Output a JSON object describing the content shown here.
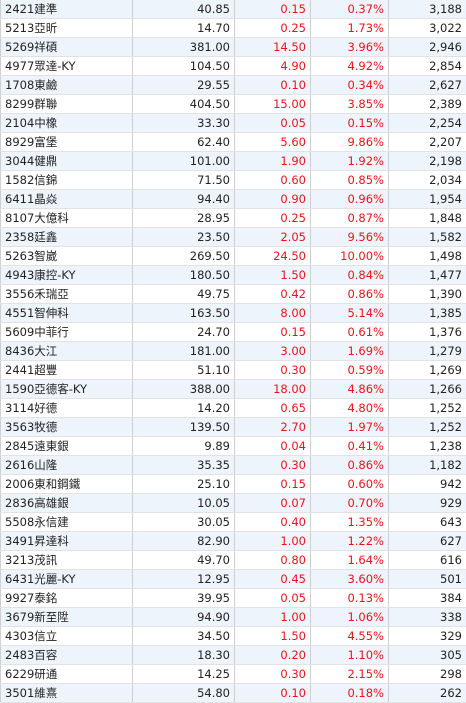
{
  "rows": [
    {
      "name": "2421建準",
      "price": "40.85",
      "change": "0.15",
      "pct": "0.37%",
      "volume": "3,188"
    },
    {
      "name": "5213亞昕",
      "price": "14.70",
      "change": "0.25",
      "pct": "1.73%",
      "volume": "3,022"
    },
    {
      "name": "5269祥碩",
      "price": "381.00",
      "change": "14.50",
      "pct": "3.96%",
      "volume": "2,946"
    },
    {
      "name": "4977眾達-KY",
      "price": "104.50",
      "change": "4.90",
      "pct": "4.92%",
      "volume": "2,854"
    },
    {
      "name": "1708東鹼",
      "price": "29.55",
      "change": "0.10",
      "pct": "0.34%",
      "volume": "2,627"
    },
    {
      "name": "8299群聯",
      "price": "404.50",
      "change": "15.00",
      "pct": "3.85%",
      "volume": "2,389"
    },
    {
      "name": "2104中橡",
      "price": "33.30",
      "change": "0.05",
      "pct": "0.15%",
      "volume": "2,254"
    },
    {
      "name": "8929富堡",
      "price": "62.40",
      "change": "5.60",
      "pct": "9.86%",
      "volume": "2,207"
    },
    {
      "name": "3044健鼎",
      "price": "101.00",
      "change": "1.90",
      "pct": "1.92%",
      "volume": "2,198"
    },
    {
      "name": "1582信錦",
      "price": "71.50",
      "change": "0.60",
      "pct": "0.85%",
      "volume": "2,034"
    },
    {
      "name": "6411晶焱",
      "price": "94.40",
      "change": "0.90",
      "pct": "0.96%",
      "volume": "1,954"
    },
    {
      "name": "8107大億科",
      "price": "28.95",
      "change": "0.25",
      "pct": "0.87%",
      "volume": "1,848"
    },
    {
      "name": "2358廷鑫",
      "price": "23.50",
      "change": "2.05",
      "pct": "9.56%",
      "volume": "1,582"
    },
    {
      "name": "5263智崴",
      "price": "269.50",
      "change": "24.50",
      "pct": "10.00%",
      "volume": "1,498"
    },
    {
      "name": "4943康控-KY",
      "price": "180.50",
      "change": "1.50",
      "pct": "0.84%",
      "volume": "1,477"
    },
    {
      "name": "3556禾瑞亞",
      "price": "49.75",
      "change": "0.42",
      "pct": "0.86%",
      "volume": "1,390"
    },
    {
      "name": "4551智伸科",
      "price": "163.50",
      "change": "8.00",
      "pct": "5.14%",
      "volume": "1,385"
    },
    {
      "name": "5609中菲行",
      "price": "24.70",
      "change": "0.15",
      "pct": "0.61%",
      "volume": "1,376"
    },
    {
      "name": "8436大江",
      "price": "181.00",
      "change": "3.00",
      "pct": "1.69%",
      "volume": "1,279"
    },
    {
      "name": "2441超豐",
      "price": "51.10",
      "change": "0.30",
      "pct": "0.59%",
      "volume": "1,269"
    },
    {
      "name": "1590亞德客-KY",
      "price": "388.00",
      "change": "18.00",
      "pct": "4.86%",
      "volume": "1,266"
    },
    {
      "name": "3114好德",
      "price": "14.20",
      "change": "0.65",
      "pct": "4.80%",
      "volume": "1,252"
    },
    {
      "name": "3563牧德",
      "price": "139.50",
      "change": "2.70",
      "pct": "1.97%",
      "volume": "1,252"
    },
    {
      "name": "2845遠東銀",
      "price": "9.89",
      "change": "0.04",
      "pct": "0.41%",
      "volume": "1,238"
    },
    {
      "name": "2616山隆",
      "price": "35.35",
      "change": "0.30",
      "pct": "0.86%",
      "volume": "1,182"
    },
    {
      "name": "2006東和鋼鐵",
      "price": "25.10",
      "change": "0.15",
      "pct": "0.60%",
      "volume": "942"
    },
    {
      "name": "2836高雄銀",
      "price": "10.05",
      "change": "0.07",
      "pct": "0.70%",
      "volume": "929"
    },
    {
      "name": "5508永信建",
      "price": "30.05",
      "change": "0.40",
      "pct": "1.35%",
      "volume": "643"
    },
    {
      "name": "3491昇達科",
      "price": "82.90",
      "change": "1.00",
      "pct": "1.22%",
      "volume": "627"
    },
    {
      "name": "3213茂訊",
      "price": "49.70",
      "change": "0.80",
      "pct": "1.64%",
      "volume": "616"
    },
    {
      "name": "6431光麗-KY",
      "price": "12.95",
      "change": "0.45",
      "pct": "3.60%",
      "volume": "501"
    },
    {
      "name": "9927泰銘",
      "price": "39.95",
      "change": "0.05",
      "pct": "0.13%",
      "volume": "384"
    },
    {
      "name": "3679新至陞",
      "price": "94.90",
      "change": "1.00",
      "pct": "1.06%",
      "volume": "338"
    },
    {
      "name": "4303信立",
      "price": "34.50",
      "change": "1.50",
      "pct": "4.55%",
      "volume": "329"
    },
    {
      "name": "2483百容",
      "price": "18.30",
      "change": "0.20",
      "pct": "1.10%",
      "volume": "305"
    },
    {
      "name": "6229研通",
      "price": "14.25",
      "change": "0.30",
      "pct": "2.15%",
      "volume": "298"
    },
    {
      "name": "3501維熹",
      "price": "54.80",
      "change": "0.10",
      "pct": "0.18%",
      "volume": "262"
    }
  ],
  "colors": {
    "up": "#e8141d",
    "text": "#222222",
    "row_alt": "#eef4fc",
    "grid": "#cfcfcf"
  }
}
